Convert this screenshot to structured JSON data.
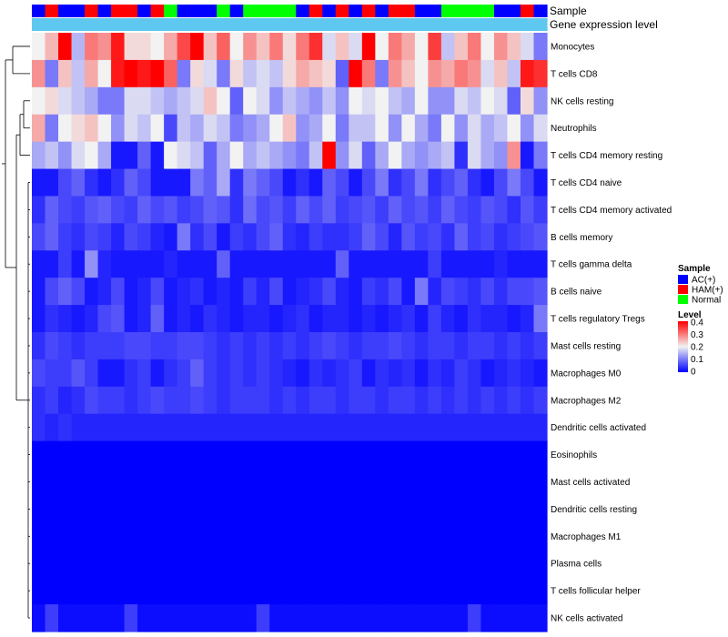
{
  "chart_data": {
    "type": "heatmap",
    "title": "",
    "annotation_rows": [
      "Sample",
      "Gene expression level"
    ],
    "sample_types": [
      "AC(+)",
      "HAM(+)",
      "AC(+)",
      "AC(+)",
      "HAM(+)",
      "AC(+)",
      "HAM(+)",
      "HAM(+)",
      "AC(+)",
      "HAM(+)",
      "Normal",
      "AC(+)",
      "AC(+)",
      "AC(+)",
      "Normal",
      "AC(+)",
      "Normal",
      "Normal",
      "Normal",
      "Normal",
      "AC(+)",
      "HAM(+)",
      "AC(+)",
      "HAM(+)",
      "AC(+)",
      "HAM(+)",
      "AC(+)",
      "HAM(+)",
      "HAM(+)",
      "AC(+)",
      "AC(+)",
      "Normal",
      "Normal",
      "Normal",
      "Normal",
      "AC(+)",
      "AC(+)",
      "HAM(+)",
      "AC(+)"
    ],
    "rows": [
      {
        "label": "Monocytes",
        "values": [
          0.2,
          0.25,
          0.4,
          0.15,
          0.3,
          0.28,
          0.38,
          0.22,
          0.22,
          0.2,
          0.26,
          0.34,
          0.4,
          0.24,
          0.32,
          0.2,
          0.28,
          0.24,
          0.3,
          0.22,
          0.3,
          0.36,
          0.18,
          0.24,
          0.18,
          0.4,
          0.2,
          0.3,
          0.26,
          0.2,
          0.35,
          0.16,
          0.24,
          0.3,
          0.2,
          0.28,
          0.24,
          0.18,
          0.1
        ]
      },
      {
        "label": "T cells CD8",
        "values": [
          0.28,
          0.1,
          0.24,
          0.16,
          0.26,
          0.2,
          0.38,
          0.4,
          0.38,
          0.4,
          0.32,
          0.1,
          0.22,
          0.18,
          0.1,
          0.22,
          0.16,
          0.18,
          0.16,
          0.22,
          0.26,
          0.24,
          0.22,
          0.08,
          0.4,
          0.3,
          0.1,
          0.28,
          0.24,
          0.2,
          0.28,
          0.26,
          0.3,
          0.28,
          0.18,
          0.24,
          0.16,
          0.38,
          0.36
        ]
      },
      {
        "label": "NK cells resting",
        "values": [
          0.2,
          0.22,
          0.18,
          0.16,
          0.14,
          0.1,
          0.1,
          0.18,
          0.18,
          0.16,
          0.14,
          0.16,
          0.18,
          0.24,
          0.2,
          0.08,
          0.2,
          0.18,
          0.12,
          0.16,
          0.14,
          0.12,
          0.16,
          0.12,
          0.2,
          0.18,
          0.2,
          0.16,
          0.14,
          0.2,
          0.12,
          0.12,
          0.18,
          0.16,
          0.2,
          0.18,
          0.08,
          0.22,
          0.12
        ]
      },
      {
        "label": "Neutrophils",
        "values": [
          0.26,
          0.1,
          0.2,
          0.22,
          0.24,
          0.2,
          0.12,
          0.18,
          0.16,
          0.2,
          0.06,
          0.16,
          0.14,
          0.18,
          0.16,
          0.1,
          0.12,
          0.14,
          0.2,
          0.24,
          0.12,
          0.14,
          0.2,
          0.1,
          0.16,
          0.16,
          0.2,
          0.12,
          0.2,
          0.14,
          0.1,
          0.2,
          0.12,
          0.18,
          0.14,
          0.16,
          0.2,
          0.12,
          0.18
        ]
      },
      {
        "label": "T cells CD4 memory resting",
        "values": [
          0.14,
          0.16,
          0.12,
          0.18,
          0.2,
          0.14,
          0.02,
          0.02,
          0.08,
          0.02,
          0.2,
          0.18,
          0.16,
          0.08,
          0.14,
          0.2,
          0.14,
          0.16,
          0.14,
          0.12,
          0.1,
          0.16,
          0.4,
          0.12,
          0.18,
          0.08,
          0.14,
          0.2,
          0.14,
          0.12,
          0.14,
          0.16,
          0.04,
          0.18,
          0.14,
          0.12,
          0.28,
          0.02,
          0.1
        ]
      },
      {
        "label": "T cells CD4 naive",
        "values": [
          0.02,
          0.02,
          0.06,
          0.08,
          0.04,
          0.02,
          0.04,
          0.08,
          0.06,
          0.02,
          0.02,
          0.02,
          0.1,
          0.08,
          0.14,
          0.04,
          0.1,
          0.08,
          0.06,
          0.02,
          0.04,
          0.02,
          0.08,
          0.06,
          0.02,
          0.06,
          0.1,
          0.04,
          0.06,
          0.1,
          0.04,
          0.06,
          0.08,
          0.04,
          0.02,
          0.06,
          0.1,
          0.06,
          0.02
        ]
      },
      {
        "label": "T cells CD4 memory activated",
        "values": [
          0.04,
          0.08,
          0.06,
          0.05,
          0.07,
          0.08,
          0.06,
          0.05,
          0.08,
          0.06,
          0.07,
          0.05,
          0.06,
          0.08,
          0.07,
          0.04,
          0.09,
          0.06,
          0.07,
          0.05,
          0.08,
          0.06,
          0.08,
          0.05,
          0.06,
          0.07,
          0.05,
          0.08,
          0.06,
          0.07,
          0.05,
          0.08,
          0.06,
          0.05,
          0.07,
          0.06,
          0.04,
          0.07,
          0.05
        ]
      },
      {
        "label": "B cells memory",
        "values": [
          0.06,
          0.08,
          0.05,
          0.04,
          0.06,
          0.05,
          0.03,
          0.06,
          0.05,
          0.03,
          0.02,
          0.1,
          0.04,
          0.06,
          0.02,
          0.05,
          0.04,
          0.06,
          0.08,
          0.04,
          0.03,
          0.05,
          0.04,
          0.04,
          0.05,
          0.08,
          0.06,
          0.03,
          0.07,
          0.05,
          0.06,
          0.04,
          0.08,
          0.05,
          0.06,
          0.04,
          0.05,
          0.06,
          0.07
        ]
      },
      {
        "label": "T cells gamma delta",
        "values": [
          0.02,
          0.02,
          0.05,
          0.02,
          0.12,
          0.03,
          0.02,
          0.02,
          0.02,
          0.02,
          0.03,
          0.02,
          0.02,
          0.02,
          0.08,
          0.02,
          0.02,
          0.02,
          0.02,
          0.02,
          0.02,
          0.02,
          0.02,
          0.08,
          0.02,
          0.02,
          0.02,
          0.02,
          0.02,
          0.02,
          0.05,
          0.02,
          0.02,
          0.02,
          0.02,
          0.03,
          0.02,
          0.02,
          0.02
        ]
      },
      {
        "label": "B cells naive",
        "values": [
          0.02,
          0.06,
          0.08,
          0.06,
          0.02,
          0.03,
          0.06,
          0.02,
          0.03,
          0.06,
          0.02,
          0.03,
          0.04,
          0.02,
          0.03,
          0.02,
          0.05,
          0.03,
          0.06,
          0.02,
          0.03,
          0.04,
          0.06,
          0.03,
          0.02,
          0.05,
          0.04,
          0.06,
          0.02,
          0.1,
          0.03,
          0.06,
          0.05,
          0.04,
          0.06,
          0.04,
          0.06,
          0.06,
          0.07
        ]
      },
      {
        "label": "T cells regulatory  Tregs",
        "values": [
          0.02,
          0.04,
          0.03,
          0.02,
          0.03,
          0.06,
          0.07,
          0.02,
          0.03,
          0.08,
          0.02,
          0.03,
          0.02,
          0.04,
          0.03,
          0.02,
          0.03,
          0.03,
          0.02,
          0.03,
          0.04,
          0.02,
          0.03,
          0.03,
          0.02,
          0.03,
          0.02,
          0.03,
          0.04,
          0.02,
          0.05,
          0.03,
          0.02,
          0.04,
          0.03,
          0.03,
          0.02,
          0.03,
          0.1
        ]
      },
      {
        "label": "Mast cells resting",
        "values": [
          0.04,
          0.06,
          0.05,
          0.04,
          0.05,
          0.05,
          0.05,
          0.06,
          0.06,
          0.05,
          0.05,
          0.06,
          0.06,
          0.05,
          0.04,
          0.05,
          0.04,
          0.05,
          0.04,
          0.05,
          0.04,
          0.05,
          0.06,
          0.05,
          0.04,
          0.05,
          0.05,
          0.06,
          0.05,
          0.04,
          0.05,
          0.05,
          0.04,
          0.05,
          0.05,
          0.04,
          0.05,
          0.04,
          0.05
        ]
      },
      {
        "label": "Macrophages M0",
        "values": [
          0.06,
          0.05,
          0.05,
          0.07,
          0.05,
          0.02,
          0.02,
          0.04,
          0.05,
          0.02,
          0.04,
          0.05,
          0.08,
          0.05,
          0.04,
          0.05,
          0.04,
          0.05,
          0.04,
          0.03,
          0.02,
          0.04,
          0.03,
          0.04,
          0.05,
          0.02,
          0.04,
          0.03,
          0.04,
          0.02,
          0.04,
          0.03,
          0.05,
          0.04,
          0.02,
          0.03,
          0.04,
          0.03,
          0.02
        ]
      },
      {
        "label": "Macrophages M2",
        "values": [
          0.04,
          0.05,
          0.03,
          0.04,
          0.06,
          0.05,
          0.05,
          0.04,
          0.05,
          0.06,
          0.05,
          0.05,
          0.06,
          0.05,
          0.04,
          0.05,
          0.05,
          0.05,
          0.04,
          0.05,
          0.04,
          0.05,
          0.05,
          0.04,
          0.05,
          0.05,
          0.04,
          0.05,
          0.05,
          0.04,
          0.05,
          0.04,
          0.05,
          0.04,
          0.05,
          0.04,
          0.05,
          0.04,
          0.05
        ]
      },
      {
        "label": "Dendritic cells activated",
        "values": [
          0.04,
          0.03,
          0.04,
          0.03,
          0.03,
          0.03,
          0.03,
          0.03,
          0.03,
          0.03,
          0.03,
          0.03,
          0.03,
          0.03,
          0.03,
          0.03,
          0.03,
          0.03,
          0.03,
          0.03,
          0.03,
          0.03,
          0.03,
          0.03,
          0.03,
          0.03,
          0.03,
          0.03,
          0.03,
          0.03,
          0.03,
          0.03,
          0.03,
          0.03,
          0.03,
          0.03,
          0.03,
          0.03,
          0.03
        ]
      },
      {
        "label": "Eosinophils",
        "values": [
          0,
          0,
          0,
          0,
          0,
          0,
          0,
          0,
          0,
          0,
          0,
          0,
          0,
          0,
          0,
          0,
          0,
          0,
          0,
          0,
          0,
          0,
          0,
          0,
          0,
          0,
          0,
          0,
          0,
          0,
          0,
          0,
          0,
          0,
          0,
          0,
          0,
          0,
          0
        ]
      },
      {
        "label": "Mast cells activated",
        "values": [
          0,
          0,
          0,
          0,
          0,
          0,
          0,
          0,
          0,
          0,
          0,
          0,
          0,
          0,
          0,
          0,
          0,
          0,
          0,
          0,
          0,
          0,
          0,
          0,
          0,
          0,
          0,
          0,
          0,
          0,
          0,
          0,
          0,
          0,
          0,
          0,
          0,
          0,
          0
        ]
      },
      {
        "label": "Dendritic cells resting",
        "values": [
          0,
          0,
          0,
          0,
          0,
          0,
          0,
          0,
          0,
          0,
          0,
          0,
          0,
          0,
          0,
          0,
          0,
          0,
          0,
          0,
          0,
          0,
          0,
          0,
          0,
          0,
          0,
          0,
          0,
          0,
          0,
          0,
          0,
          0,
          0,
          0,
          0,
          0,
          0
        ]
      },
      {
        "label": "Macrophages M1",
        "values": [
          0,
          0,
          0,
          0,
          0,
          0,
          0,
          0,
          0,
          0,
          0,
          0,
          0,
          0,
          0,
          0,
          0,
          0,
          0,
          0,
          0,
          0,
          0,
          0,
          0,
          0,
          0,
          0,
          0,
          0,
          0,
          0,
          0,
          0,
          0,
          0,
          0,
          0,
          0
        ]
      },
      {
        "label": "Plasma cells",
        "values": [
          0,
          0,
          0,
          0,
          0,
          0,
          0,
          0,
          0,
          0,
          0,
          0,
          0,
          0,
          0,
          0,
          0,
          0,
          0,
          0,
          0,
          0,
          0,
          0,
          0,
          0,
          0,
          0,
          0,
          0,
          0,
          0,
          0,
          0,
          0,
          0,
          0,
          0,
          0
        ]
      },
      {
        "label": "T cells follicular helper",
        "values": [
          0,
          0,
          0,
          0,
          0,
          0,
          0,
          0,
          0,
          0,
          0,
          0,
          0,
          0,
          0,
          0,
          0,
          0,
          0,
          0,
          0,
          0,
          0,
          0,
          0,
          0,
          0,
          0,
          0,
          0,
          0,
          0,
          0,
          0,
          0,
          0,
          0,
          0,
          0
        ]
      },
      {
        "label": "NK cells activated",
        "values": [
          0.01,
          0.05,
          0.01,
          0.01,
          0.01,
          0.01,
          0.01,
          0.05,
          0.01,
          0.01,
          0.01,
          0.01,
          0.01,
          0.01,
          0.01,
          0.01,
          0.01,
          0.05,
          0.01,
          0.01,
          0.01,
          0.01,
          0.01,
          0.01,
          0.01,
          0.01,
          0.01,
          0.01,
          0.01,
          0.01,
          0.01,
          0.01,
          0.01,
          0.05,
          0.01,
          0.01,
          0.01,
          0.01,
          0.01
        ]
      }
    ],
    "legend_sample": {
      "title": "Sample",
      "entries": [
        {
          "label": "AC(+)",
          "color": "#0000ff"
        },
        {
          "label": "HAM(+)",
          "color": "#ff0000"
        },
        {
          "label": "Normal",
          "color": "#00ff00"
        }
      ]
    },
    "legend_level": {
      "title": "Level",
      "ticks": [
        "0.4",
        "0.3",
        "0.2",
        "0.1",
        "0"
      ],
      "range": [
        0,
        0.4
      ]
    },
    "gene_expression_color": "#5fc8f0",
    "colors": {
      "low": "#0000ff",
      "mid": "#f2f2f2",
      "high": "#ff0000"
    }
  }
}
